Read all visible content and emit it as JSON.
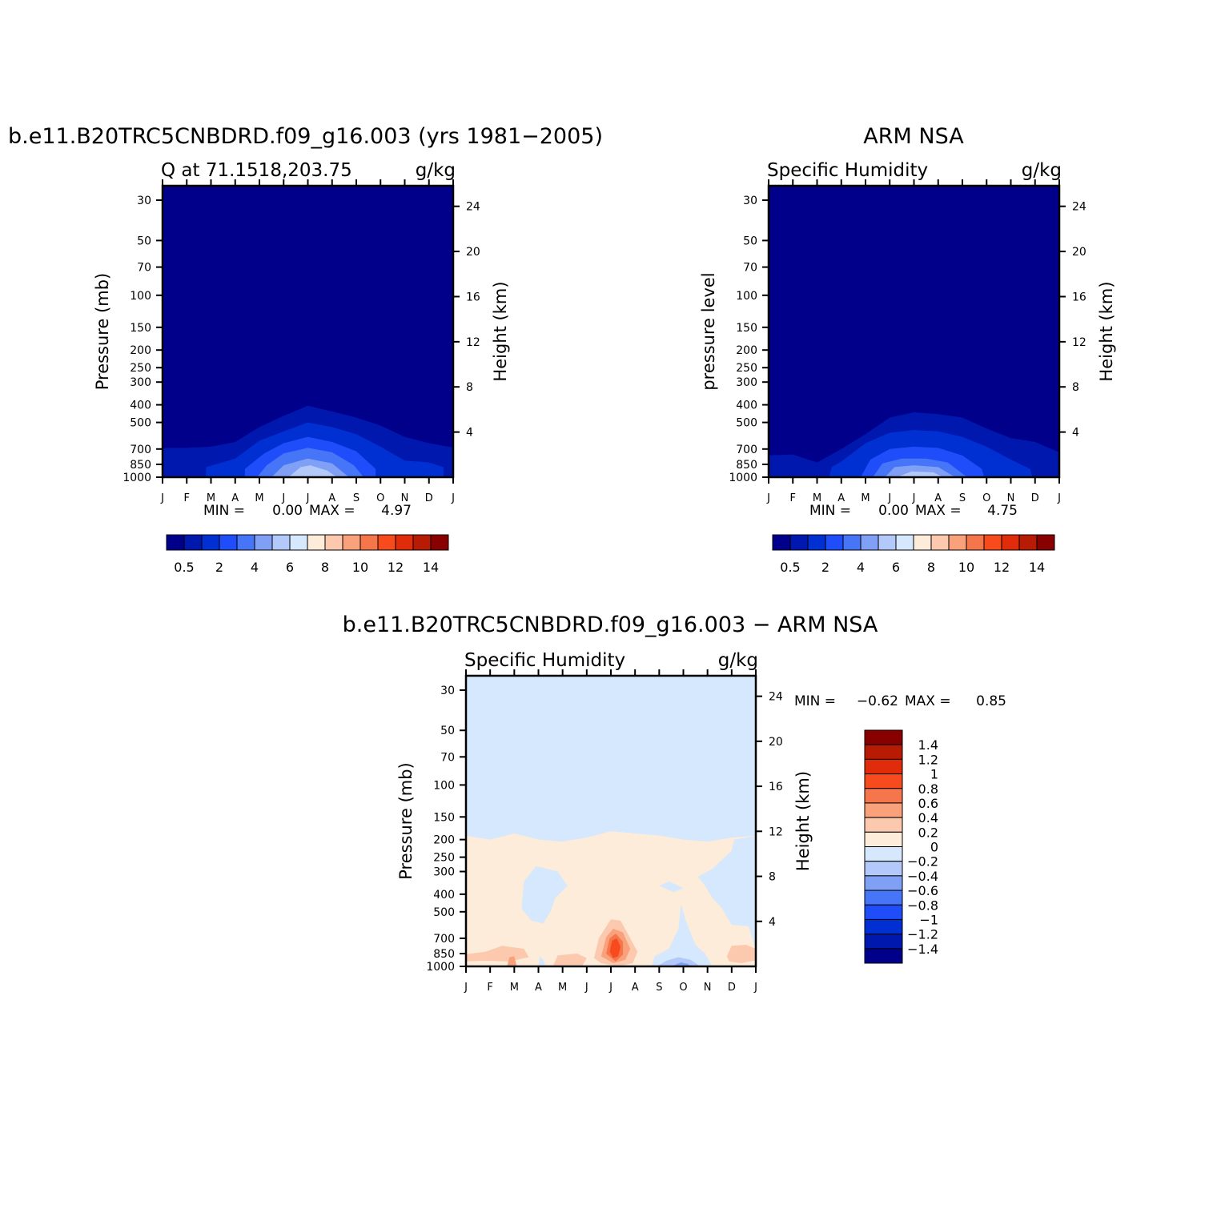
{
  "figure": {
    "months": [
      "J",
      "F",
      "M",
      "A",
      "M",
      "J",
      "J",
      "A",
      "S",
      "O",
      "N",
      "D",
      "J"
    ],
    "pressure_ticks": [
      30,
      50,
      70,
      100,
      150,
      200,
      250,
      300,
      400,
      500,
      700,
      850,
      1000
    ],
    "height_ticks": [
      4,
      8,
      12,
      16,
      20,
      24
    ]
  },
  "chart_data": [
    {
      "type": "heatmap",
      "title": "b.e11.B20TRC5CNBDRD.f09_g16.003 (yrs 1981−2005)",
      "left_label": "Q at 71.1518,203.75",
      "right_label": "g/kg",
      "ylabel": "Pressure (mb)",
      "y2label": "Height (km)",
      "min_label": "MIN =",
      "min_value": "0.00",
      "max_label": "MAX =",
      "max_value": "4.97",
      "ylim": [
        1000,
        25
      ],
      "x": [
        "J",
        "F",
        "M",
        "A",
        "M",
        "J",
        "J",
        "A",
        "S",
        "O",
        "N",
        "D",
        "J"
      ],
      "contour_levels": [
        0.5,
        1,
        2,
        3,
        4,
        5,
        6,
        7,
        8,
        9,
        10,
        11,
        12,
        13,
        14
      ],
      "colorbar_tick_labels": [
        "0.5",
        "2",
        "4",
        "6",
        "8",
        "10",
        "12",
        "14"
      ],
      "colors": [
        "#00008a",
        "#0018ae",
        "#002fd2",
        "#1f4dfa",
        "#4775f7",
        "#7fa0f4",
        "#b2c9f9",
        "#d6e8fd",
        "#fdecd9",
        "#fcc9ae",
        "#f9a17a",
        "#f6764b",
        "#f74b1d",
        "#e02c0a",
        "#b81b04",
        "#880000"
      ]
    },
    {
      "type": "heatmap",
      "title": "ARM NSA",
      "left_label": "Specific Humidity",
      "right_label": "g/kg",
      "ylabel": "pressure level",
      "y2label": "Height (km)",
      "min_label": "MIN =",
      "min_value": "0.00",
      "max_label": "MAX =",
      "max_value": "4.75",
      "ylim": [
        1000,
        25
      ],
      "x": [
        "J",
        "F",
        "M",
        "A",
        "M",
        "J",
        "J",
        "A",
        "S",
        "O",
        "N",
        "D",
        "J"
      ],
      "contour_levels": [
        0.5,
        1,
        2,
        3,
        4,
        5,
        6,
        7,
        8,
        9,
        10,
        11,
        12,
        13,
        14
      ],
      "colorbar_tick_labels": [
        "0.5",
        "2",
        "4",
        "6",
        "8",
        "10",
        "12",
        "14"
      ],
      "colors": [
        "#00008a",
        "#0018ae",
        "#002fd2",
        "#1f4dfa",
        "#4775f7",
        "#7fa0f4",
        "#b2c9f9",
        "#d6e8fd",
        "#fdecd9",
        "#fcc9ae",
        "#f9a17a",
        "#f6764b",
        "#f74b1d",
        "#e02c0a",
        "#b81b04",
        "#880000"
      ]
    },
    {
      "type": "heatmap",
      "title": "b.e11.B20TRC5CNBDRD.f09_g16.003 − ARM NSA",
      "left_label": "Specific Humidity",
      "right_label": "g/kg",
      "ylabel": "Pressure (mb)",
      "y2label": "Height (km)",
      "min_label": "MIN =",
      "min_value": "−0.62",
      "max_label": "MAX =",
      "max_value": "0.85",
      "ylim": [
        1000,
        25
      ],
      "x": [
        "J",
        "F",
        "M",
        "A",
        "M",
        "J",
        "J",
        "A",
        "S",
        "O",
        "N",
        "D",
        "J"
      ],
      "contour_levels": [
        -1.4,
        -1.2,
        -1,
        -0.8,
        -0.6,
        -0.4,
        -0.2,
        0,
        0.2,
        0.4,
        0.6,
        0.8,
        1,
        1.2,
        1.4
      ],
      "colorbar_tick_labels": [
        "1.4",
        "1.2",
        "1",
        "0.8",
        "0.6",
        "0.4",
        "0.2",
        "0",
        "−0.2",
        "−0.4",
        "−0.6",
        "−0.8",
        "−1",
        "−1.2",
        "−1.4"
      ],
      "colors": [
        "#880000",
        "#b81b04",
        "#e02c0a",
        "#f74b1d",
        "#f6764b",
        "#f9a17a",
        "#fcc9ae",
        "#fdecd9",
        "#d6e8fd",
        "#b2c9f9",
        "#7fa0f4",
        "#4775f7",
        "#1f4dfa",
        "#002fd2",
        "#0018ae",
        "#00008a"
      ]
    }
  ]
}
